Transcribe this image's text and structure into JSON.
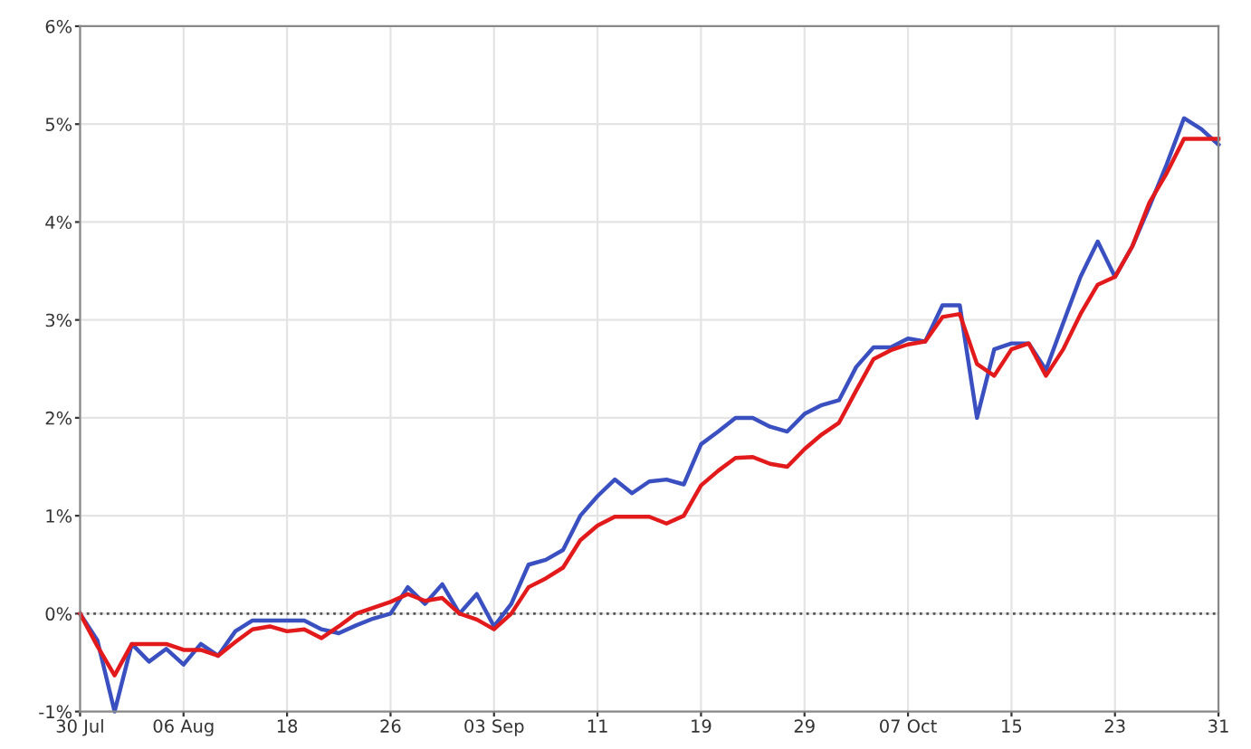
{
  "chart_data": {
    "type": "line",
    "categories": [
      "30 Jul",
      null,
      null,
      null,
      null,
      null,
      "06 Aug",
      null,
      null,
      null,
      null,
      null,
      "18",
      null,
      null,
      null,
      null,
      null,
      "26",
      null,
      null,
      null,
      null,
      null,
      "03 Sep",
      null,
      null,
      null,
      null,
      null,
      "11",
      null,
      null,
      null,
      null,
      null,
      "19",
      null,
      null,
      null,
      null,
      null,
      "29",
      null,
      null,
      null,
      null,
      null,
      "07 Oct",
      null,
      null,
      null,
      null,
      null,
      "15",
      null,
      null,
      null,
      null,
      null,
      "23",
      null,
      null,
      null,
      null,
      null,
      "31"
    ],
    "series": [
      {
        "color": "#3a4fc0",
        "values": [
          0,
          -0.27,
          -1.0,
          -0.31,
          -0.49,
          -0.36,
          -0.52,
          -0.31,
          -0.43,
          -0.18,
          -0.07,
          -0.07,
          -0.07,
          -0.07,
          -0.16,
          -0.2,
          -0.12,
          -0.05,
          0.0,
          0.27,
          0.1,
          0.3,
          0.0,
          0.2,
          -0.13,
          0.1,
          0.5,
          0.55,
          0.65,
          1.0,
          1.2,
          1.37,
          1.23,
          1.35,
          1.37,
          1.32,
          1.73,
          1.86,
          2.0,
          2.0,
          1.91,
          1.86,
          2.04,
          2.13,
          2.18,
          2.52,
          2.72,
          2.72,
          2.81,
          2.78,
          3.15,
          3.15,
          2.0,
          2.7,
          2.76,
          2.76,
          2.49,
          2.97,
          3.44,
          3.8,
          3.44,
          3.75,
          4.16,
          4.59,
          5.06,
          4.95,
          4.79
        ]
      },
      {
        "color": "#e31a1c",
        "values": [
          0,
          -0.33,
          -0.63,
          -0.31,
          -0.31,
          -0.31,
          -0.37,
          -0.37,
          -0.43,
          -0.29,
          -0.16,
          -0.13,
          -0.18,
          -0.16,
          -0.25,
          -0.13,
          0.0,
          0.06,
          0.12,
          0.2,
          0.13,
          0.16,
          0.0,
          -0.06,
          -0.16,
          0.0,
          0.27,
          0.36,
          0.47,
          0.75,
          0.9,
          0.99,
          0.99,
          0.99,
          0.92,
          1.0,
          1.31,
          1.46,
          1.59,
          1.6,
          1.53,
          1.5,
          1.68,
          1.83,
          1.95,
          2.28,
          2.6,
          2.69,
          2.75,
          2.78,
          3.03,
          3.06,
          2.55,
          2.43,
          2.7,
          2.76,
          2.43,
          2.7,
          3.06,
          3.36,
          3.44,
          3.75,
          4.2,
          4.5,
          4.85,
          4.85,
          4.85
        ]
      }
    ],
    "ylim": [
      -1,
      6
    ],
    "yticks": [
      {
        "value": -1,
        "label": "-1%"
      },
      {
        "value": 0,
        "label": "0%"
      },
      {
        "value": 1,
        "label": "1%"
      },
      {
        "value": 2,
        "label": "2%"
      },
      {
        "value": 3,
        "label": "3%"
      },
      {
        "value": 4,
        "label": "4%"
      },
      {
        "value": 5,
        "label": "5%"
      },
      {
        "value": 6,
        "label": "6%"
      }
    ],
    "ref_lines": [
      {
        "axis": "y",
        "value": 0,
        "color": "#555555",
        "line_style": "dotted"
      }
    ],
    "grid": true,
    "legend": false,
    "marker": "none",
    "line_style": "solid"
  }
}
